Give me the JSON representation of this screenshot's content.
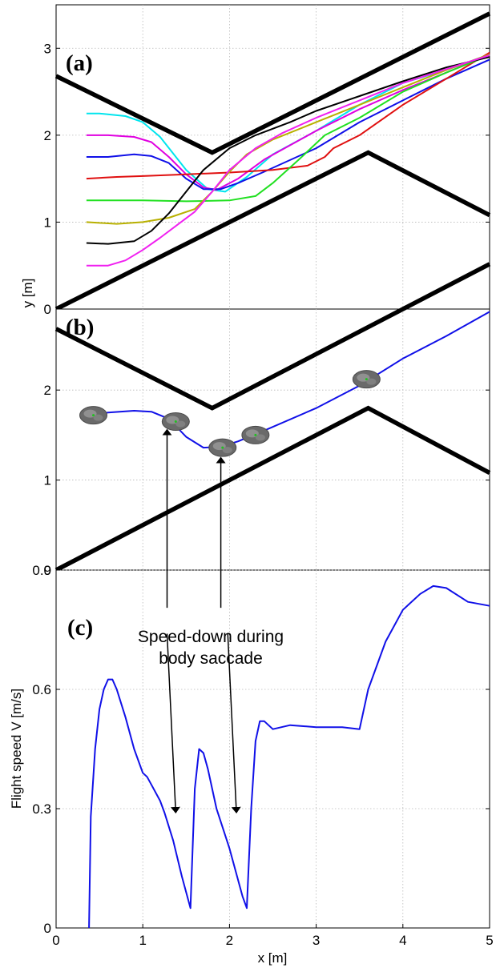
{
  "chart_data": [
    {
      "type": "line",
      "panel_label": "(a)",
      "xlim": [
        0,
        5
      ],
      "ylim": [
        0,
        3.5
      ],
      "yticks": [
        0,
        1,
        2,
        3
      ],
      "ylabel": "y [m]",
      "grid": true,
      "walls": [
        {
          "name": "upper wall",
          "color": "#000000",
          "x": [
            0,
            1.8,
            5
          ],
          "y": [
            2.68,
            1.8,
            3.4
          ]
        },
        {
          "name": "lower wall",
          "color": "#000000",
          "x": [
            0,
            3.6,
            5
          ],
          "y": [
            0,
            1.8,
            1.08
          ]
        }
      ],
      "series": [
        {
          "color": "#00e5ee",
          "x": [
            0.35,
            0.5,
            0.8,
            1.0,
            1.2,
            1.5,
            1.75,
            1.95,
            2.2,
            2.5,
            3.0,
            3.5,
            4.0,
            4.5,
            5.0
          ],
          "y": [
            2.25,
            2.25,
            2.22,
            2.15,
            1.98,
            1.6,
            1.38,
            1.35,
            1.52,
            1.78,
            2.05,
            2.35,
            2.6,
            2.75,
            2.93
          ]
        },
        {
          "color": "#e000e0",
          "x": [
            0.35,
            0.6,
            0.9,
            1.1,
            1.3,
            1.5,
            1.7,
            1.85,
            2.1,
            2.4,
            3.0,
            3.5,
            4.0,
            4.5,
            5.0
          ],
          "y": [
            2.0,
            2.0,
            1.98,
            1.92,
            1.75,
            1.55,
            1.4,
            1.37,
            1.5,
            1.72,
            2.05,
            2.3,
            2.52,
            2.72,
            2.93
          ]
        },
        {
          "color": "#1010e8",
          "x": [
            0.35,
            0.6,
            0.9,
            1.1,
            1.3,
            1.5,
            1.7,
            1.9,
            2.1,
            2.4,
            3.0,
            3.5,
            4.0,
            4.5,
            5.0
          ],
          "y": [
            1.75,
            1.75,
            1.78,
            1.76,
            1.68,
            1.5,
            1.38,
            1.38,
            1.45,
            1.58,
            1.85,
            2.15,
            2.4,
            2.65,
            2.87
          ]
        },
        {
          "color": "#e01010",
          "x": [
            0.35,
            0.7,
            1.0,
            1.5,
            2.0,
            2.5,
            2.9,
            3.1,
            3.2,
            3.5,
            4.0,
            4.5,
            5.0
          ],
          "y": [
            1.5,
            1.52,
            1.53,
            1.55,
            1.57,
            1.6,
            1.65,
            1.75,
            1.85,
            2.0,
            2.35,
            2.65,
            2.95
          ]
        },
        {
          "color": "#20e020",
          "x": [
            0.35,
            0.7,
            1.0,
            1.5,
            2.0,
            2.3,
            2.5,
            2.8,
            3.1,
            3.5,
            4.0,
            4.5,
            5.0
          ],
          "y": [
            1.25,
            1.25,
            1.25,
            1.24,
            1.25,
            1.3,
            1.45,
            1.72,
            2.0,
            2.2,
            2.5,
            2.72,
            2.92
          ]
        },
        {
          "color": "#b8b000",
          "x": [
            0.35,
            0.7,
            1.0,
            1.3,
            1.6,
            1.8,
            2.0,
            2.2,
            2.5,
            3.0,
            3.5,
            4.0,
            4.5,
            5.0
          ],
          "y": [
            1.0,
            0.98,
            1.0,
            1.05,
            1.15,
            1.35,
            1.58,
            1.78,
            1.95,
            2.15,
            2.35,
            2.55,
            2.75,
            2.93
          ]
        },
        {
          "color": "#000000",
          "x": [
            0.35,
            0.6,
            0.9,
            1.1,
            1.3,
            1.5,
            1.7,
            2.0,
            2.3,
            2.7,
            3.0,
            3.5,
            4.0,
            4.5,
            5.0
          ],
          "y": [
            0.76,
            0.75,
            0.78,
            0.9,
            1.1,
            1.35,
            1.6,
            1.85,
            2.0,
            2.15,
            2.28,
            2.45,
            2.62,
            2.78,
            2.9
          ]
        },
        {
          "color": "#f020f0",
          "x": [
            0.35,
            0.6,
            0.8,
            1.0,
            1.2,
            1.4,
            1.6,
            1.8,
            2.0,
            2.3,
            2.6,
            3.0,
            3.5,
            4.0,
            4.5,
            5.0
          ],
          "y": [
            0.5,
            0.5,
            0.56,
            0.68,
            0.82,
            0.97,
            1.12,
            1.35,
            1.6,
            1.85,
            2.02,
            2.2,
            2.4,
            2.6,
            2.76,
            2.92
          ]
        }
      ]
    },
    {
      "type": "line",
      "panel_label": "(b)",
      "xlim": [
        0,
        5
      ],
      "ylim": [
        0,
        2.9
      ],
      "yticks": [
        0,
        1,
        2
      ],
      "grid": true,
      "walls": [
        {
          "name": "upper wall",
          "color": "#000000",
          "x": [
            0,
            1.8,
            5
          ],
          "y": [
            2.68,
            1.8,
            3.4
          ]
        },
        {
          "name": "lower wall",
          "color": "#000000",
          "x": [
            0,
            3.6,
            5
          ],
          "y": [
            0,
            1.8,
            1.08
          ]
        }
      ],
      "series": [
        {
          "color": "#1010e8",
          "x": [
            0.35,
            0.6,
            0.9,
            1.1,
            1.3,
            1.5,
            1.7,
            1.9,
            2.1,
            2.4,
            3.0,
            3.5,
            4.0,
            4.5,
            5.0
          ],
          "y": [
            1.72,
            1.75,
            1.77,
            1.76,
            1.68,
            1.48,
            1.36,
            1.37,
            1.43,
            1.55,
            1.8,
            2.05,
            2.35,
            2.6,
            2.87
          ]
        }
      ],
      "fly_snapshots": [
        {
          "x": 0.43,
          "y": 1.72
        },
        {
          "x": 1.38,
          "y": 1.65
        },
        {
          "x": 1.92,
          "y": 1.36
        },
        {
          "x": 2.3,
          "y": 1.5
        },
        {
          "x": 3.58,
          "y": 2.12
        }
      ]
    },
    {
      "type": "line",
      "panel_label": "(c)",
      "xlim": [
        0,
        5
      ],
      "ylim": [
        0,
        0.9
      ],
      "xticks": [
        0,
        1,
        2,
        3,
        4,
        5
      ],
      "yticks": [
        0,
        0.3,
        0.6,
        0.9
      ],
      "xlabel": "x [m]",
      "ylabel": "Flight speed V [m/s]",
      "grid": true,
      "series": [
        {
          "color": "#1010e8",
          "x": [
            0.38,
            0.4,
            0.45,
            0.5,
            0.55,
            0.6,
            0.65,
            0.7,
            0.8,
            0.9,
            1.0,
            1.05,
            1.1,
            1.2,
            1.25,
            1.35,
            1.45,
            1.55,
            1.6,
            1.65,
            1.7,
            1.75,
            1.85,
            2.0,
            2.15,
            2.2,
            2.25,
            2.3,
            2.35,
            2.4,
            2.5,
            2.7,
            3.0,
            3.3,
            3.5,
            3.6,
            3.8,
            4.0,
            4.2,
            4.35,
            4.5,
            4.75,
            5.0
          ],
          "y": [
            0.0,
            0.28,
            0.45,
            0.55,
            0.6,
            0.625,
            0.625,
            0.6,
            0.53,
            0.45,
            0.39,
            0.38,
            0.36,
            0.32,
            0.29,
            0.22,
            0.13,
            0.05,
            0.35,
            0.45,
            0.44,
            0.4,
            0.3,
            0.2,
            0.08,
            0.05,
            0.3,
            0.47,
            0.52,
            0.52,
            0.5,
            0.51,
            0.505,
            0.505,
            0.5,
            0.6,
            0.72,
            0.8,
            0.84,
            0.86,
            0.855,
            0.82,
            0.81
          ]
        }
      ],
      "annotation": {
        "lines": [
          "Speed-down during",
          "body saccade"
        ],
        "arrows": [
          {
            "from": {
              "x": 1.28,
              "y": 0.7
            },
            "to": {
              "x": 1.38,
              "y": 0.29
            }
          },
          {
            "from": {
              "x": 1.98,
              "y": 0.7
            },
            "to": {
              "x": 2.08,
              "y": 0.29
            }
          }
        ]
      },
      "cross_panel_arrows": [
        {
          "x": 1.28,
          "tip_panel_b_y": 1.56
        },
        {
          "x": 1.9,
          "tip_panel_b_y": 1.25
        }
      ]
    }
  ]
}
